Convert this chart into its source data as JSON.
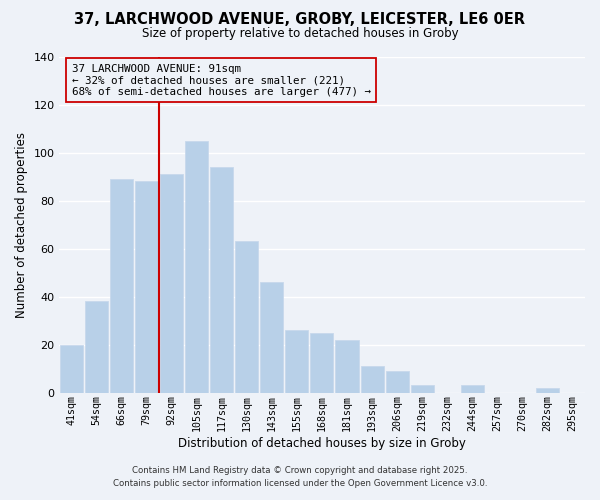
{
  "title": "37, LARCHWOOD AVENUE, GROBY, LEICESTER, LE6 0ER",
  "subtitle": "Size of property relative to detached houses in Groby",
  "xlabel": "Distribution of detached houses by size in Groby",
  "ylabel": "Number of detached properties",
  "categories": [
    "41sqm",
    "54sqm",
    "66sqm",
    "79sqm",
    "92sqm",
    "105sqm",
    "117sqm",
    "130sqm",
    "143sqm",
    "155sqm",
    "168sqm",
    "181sqm",
    "193sqm",
    "206sqm",
    "219sqm",
    "232sqm",
    "244sqm",
    "257sqm",
    "270sqm",
    "282sqm",
    "295sqm"
  ],
  "values": [
    20,
    38,
    89,
    88,
    91,
    105,
    94,
    63,
    46,
    26,
    25,
    22,
    11,
    9,
    3,
    0,
    3,
    0,
    0,
    2,
    0
  ],
  "bar_color": "#b8d0e8",
  "bar_edge_color": "#c8d8ec",
  "vline_color": "#cc0000",
  "annotation_line1": "37 LARCHWOOD AVENUE: 91sqm",
  "annotation_line2": "← 32% of detached houses are smaller (221)",
  "annotation_line3": "68% of semi-detached houses are larger (477) →",
  "annotation_box_edge": "#cc0000",
  "ylim": [
    0,
    140
  ],
  "yticks": [
    0,
    20,
    40,
    60,
    80,
    100,
    120,
    140
  ],
  "background_color": "#eef2f8",
  "grid_color": "#ffffff",
  "footer_line1": "Contains HM Land Registry data © Crown copyright and database right 2025.",
  "footer_line2": "Contains public sector information licensed under the Open Government Licence v3.0."
}
